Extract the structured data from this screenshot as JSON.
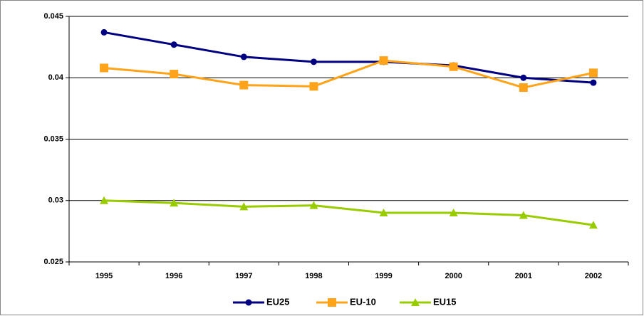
{
  "chart_data": {
    "type": "line",
    "categories": [
      "1995",
      "1996",
      "1997",
      "1998",
      "1999",
      "2000",
      "2001",
      "2002"
    ],
    "series": [
      {
        "name": "EU25",
        "color": "#000080",
        "marker": "circle",
        "values": [
          0.0437,
          0.0427,
          0.0417,
          0.0413,
          0.0413,
          0.041,
          0.04,
          0.0396
        ]
      },
      {
        "name": "EU-10",
        "color": "#FFA31A",
        "marker": "square",
        "values": [
          0.0408,
          0.0403,
          0.0394,
          0.0393,
          0.0414,
          0.0409,
          0.0392,
          0.0404
        ]
      },
      {
        "name": "EU15",
        "color": "#99CC00",
        "marker": "triangle",
        "values": [
          0.03,
          0.0298,
          0.0295,
          0.0296,
          0.029,
          0.029,
          0.0288,
          0.028
        ]
      }
    ],
    "ylim": [
      0.025,
      0.045
    ],
    "yticks": [
      0.025,
      0.03,
      0.035,
      0.04,
      0.045
    ],
    "grid": true,
    "legend": "bottom"
  }
}
